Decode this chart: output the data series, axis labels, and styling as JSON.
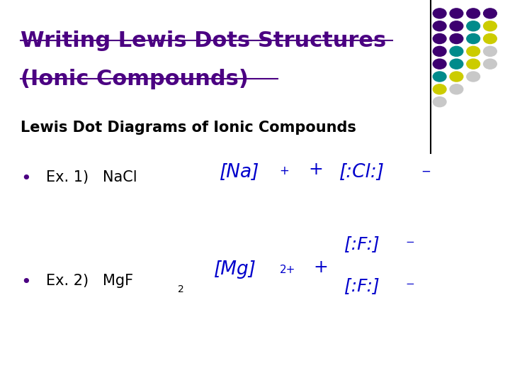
{
  "title_line1": "Writing Lewis Dots Structures",
  "title_line2": "(Ionic Compounds)",
  "subtitle": "Lewis Dot Diagrams of Ionic Compounds",
  "ex1_text": "Ex. 1)   NaCl",
  "ex2_text": "Ex. 2)   MgF",
  "ex2_subscript": "2",
  "bullet_color": "#4B0082",
  "title_color": "#4B0082",
  "subtitle_color": "#000000",
  "body_color": "#000000",
  "handwriting_color": "#0000CC",
  "bg_color": "#FFFFFF",
  "dot_grid_rows": [
    [
      "#3D0070",
      "#3D0070",
      "#3D0070",
      "#3D0070"
    ],
    [
      "#3D0070",
      "#3D0070",
      "#008B8B",
      "#CCCC00"
    ],
    [
      "#3D0070",
      "#3D0070",
      "#008B8B",
      "#CCCC00"
    ],
    [
      "#3D0070",
      "#008B8B",
      "#CCCC00",
      "#C8C8C8"
    ],
    [
      "#3D0070",
      "#008B8B",
      "#CCCC00",
      "#C8C8C8"
    ],
    [
      "#008B8B",
      "#CCCC00",
      "#C8C8C8",
      null
    ],
    [
      "#CCCC00",
      "#C8C8C8",
      null,
      null
    ],
    [
      "#C8C8C8",
      null,
      null,
      null
    ]
  ]
}
